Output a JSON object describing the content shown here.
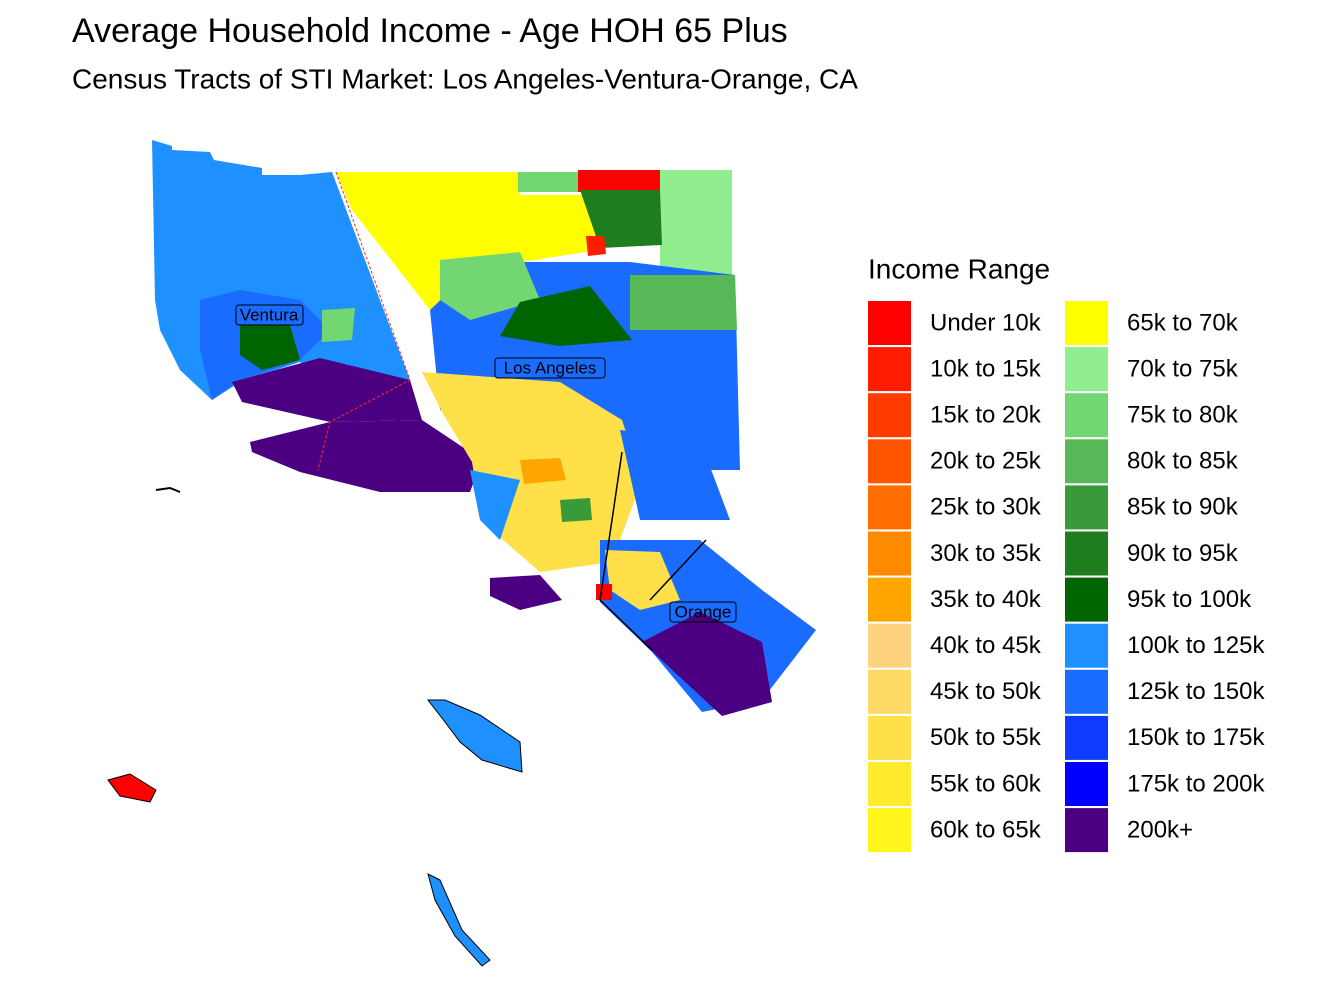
{
  "title": "Average Household Income - Age HOH 65 Plus",
  "subtitle": "Census Tracts of STI Market: Los Angeles-Ventura-Orange, CA",
  "legend": {
    "title": "Income Range",
    "items": [
      {
        "label": "Under 10k",
        "color": "#ff0000"
      },
      {
        "label": "10k to 15k",
        "color": "#ff1c00"
      },
      {
        "label": "15k to 20k",
        "color": "#ff3b00"
      },
      {
        "label": "20k to 25k",
        "color": "#ff5500"
      },
      {
        "label": "25k to 30k",
        "color": "#ff6d00"
      },
      {
        "label": "30k to 35k",
        "color": "#ff8a00"
      },
      {
        "label": "35k to 40k",
        "color": "#ffa500"
      },
      {
        "label": "40k to 45k",
        "color": "#ffd27f"
      },
      {
        "label": "45k to 50k",
        "color": "#ffd966"
      },
      {
        "label": "50k to 55k",
        "color": "#ffe048"
      },
      {
        "label": "55k to 60k",
        "color": "#ffea2e"
      },
      {
        "label": "60k to 65k",
        "color": "#fff51a"
      },
      {
        "label": "65k to 70k",
        "color": "#ffff00"
      },
      {
        "label": "70k to 75k",
        "color": "#90ee90"
      },
      {
        "label": "75k to 80k",
        "color": "#72d672"
      },
      {
        "label": "80k to 85k",
        "color": "#56b856"
      },
      {
        "label": "85k to 90k",
        "color": "#3a9a3a"
      },
      {
        "label": "90k to 95k",
        "color": "#1e7e1e"
      },
      {
        "label": "95k to 100k",
        "color": "#006400"
      },
      {
        "label": "100k to 125k",
        "color": "#1e90ff"
      },
      {
        "label": "125k to 150k",
        "color": "#1a6cff"
      },
      {
        "label": "150k to 175k",
        "color": "#0f3cff"
      },
      {
        "label": "175k to 200k",
        "color": "#0000ff"
      },
      {
        "label": "200k+",
        "color": "#4b0082"
      }
    ]
  },
  "map": {
    "labels": [
      "Ventura",
      "Los Angeles",
      "Orange"
    ]
  }
}
